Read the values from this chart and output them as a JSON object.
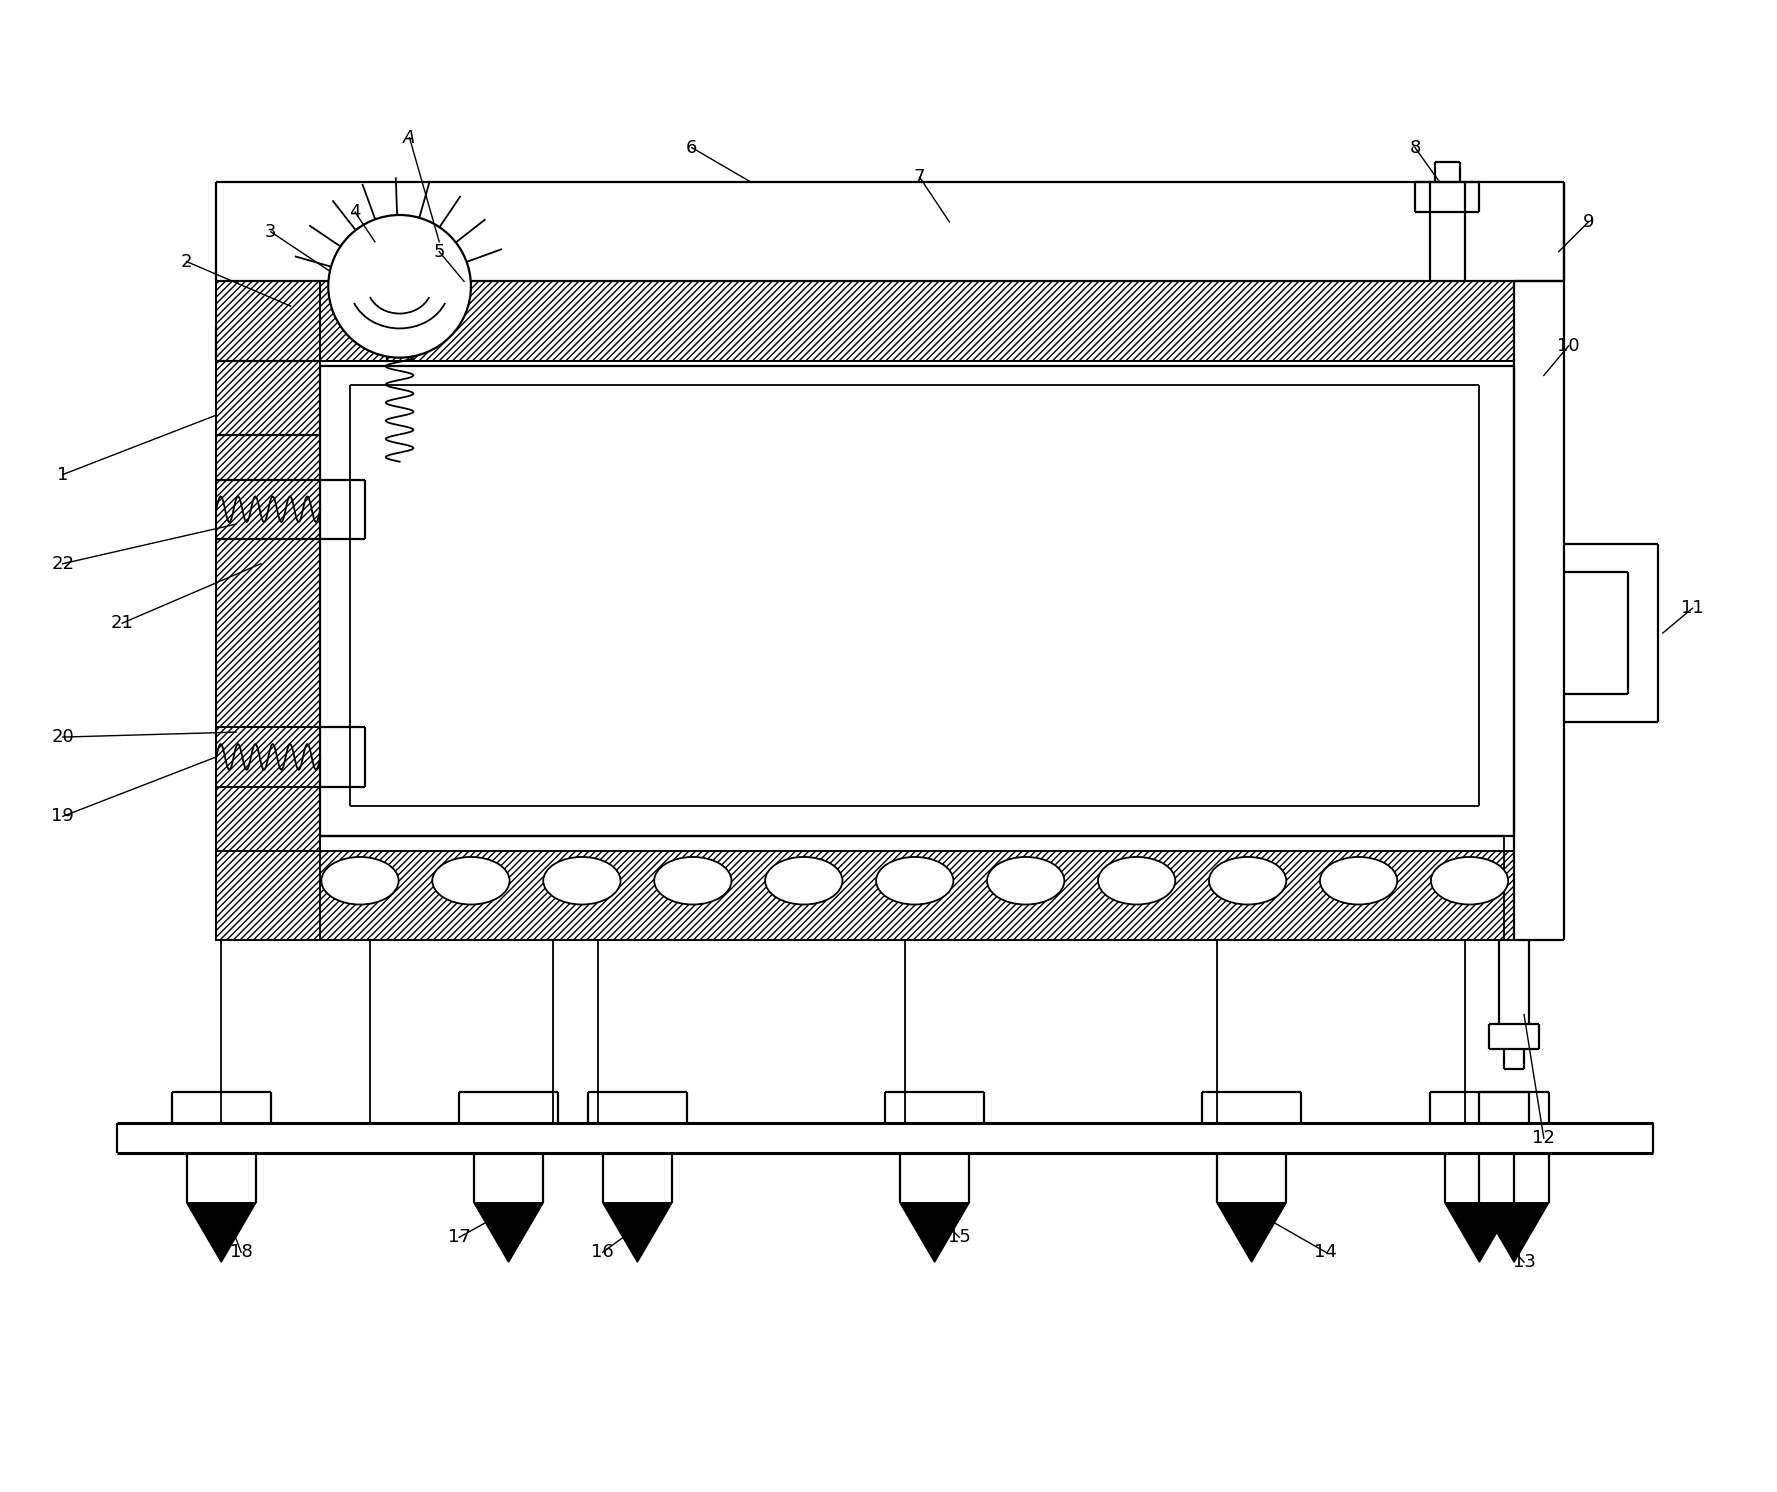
{
  "bg_color": "#ffffff",
  "line_color": "#000000",
  "fig_width": 17.77,
  "fig_height": 14.92,
  "annotations": [
    [
      "A",
      4.05,
      13.6,
      4.35,
      12.55,
      true
    ],
    [
      "1",
      0.55,
      10.2,
      2.1,
      10.8,
      false
    ],
    [
      "2",
      1.8,
      12.35,
      2.85,
      11.9,
      false
    ],
    [
      "3",
      2.65,
      12.65,
      3.25,
      12.25,
      false
    ],
    [
      "4",
      3.5,
      12.85,
      3.7,
      12.55,
      false
    ],
    [
      "5",
      4.35,
      12.45,
      4.6,
      12.15,
      false
    ],
    [
      "6",
      6.9,
      13.5,
      7.5,
      13.15,
      false
    ],
    [
      "7",
      9.2,
      13.2,
      9.5,
      12.75,
      false
    ],
    [
      "8",
      14.2,
      13.5,
      14.45,
      13.15,
      false
    ],
    [
      "9",
      15.95,
      12.75,
      15.65,
      12.45,
      false
    ],
    [
      "10",
      15.75,
      11.5,
      15.5,
      11.2,
      false
    ],
    [
      "11",
      17.0,
      8.85,
      16.7,
      8.6,
      false
    ],
    [
      "12",
      15.5,
      3.5,
      15.3,
      4.75,
      false
    ],
    [
      "13",
      15.3,
      2.25,
      14.85,
      2.75,
      false
    ],
    [
      "14",
      13.3,
      2.35,
      12.6,
      2.75,
      false
    ],
    [
      "15",
      9.6,
      2.5,
      9.35,
      2.75,
      false
    ],
    [
      "16",
      6.0,
      2.35,
      6.55,
      2.75,
      false
    ],
    [
      "17",
      4.55,
      2.5,
      5.0,
      2.75,
      false
    ],
    [
      "18",
      2.35,
      2.35,
      2.2,
      2.75,
      false
    ],
    [
      "19",
      0.55,
      6.75,
      2.1,
      7.35,
      false
    ],
    [
      "20",
      0.55,
      7.55,
      2.3,
      7.6,
      false
    ],
    [
      "21",
      1.15,
      8.7,
      2.55,
      9.3,
      false
    ],
    [
      "22",
      0.55,
      9.3,
      2.3,
      9.7,
      false
    ]
  ]
}
